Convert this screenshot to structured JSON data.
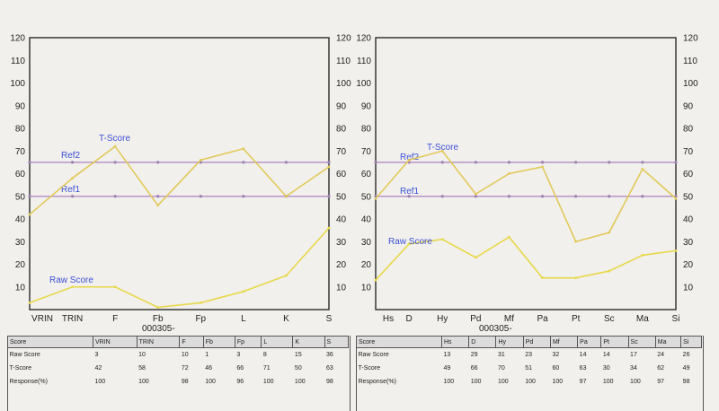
{
  "chart_data": [
    {
      "type": "line",
      "ylim": [
        0,
        120
      ],
      "yticks": [
        10,
        20,
        30,
        40,
        50,
        60,
        70,
        80,
        90,
        100,
        110,
        120
      ],
      "categories": [
        "VRIN",
        "TRIN",
        "F",
        "Fb",
        "Fp",
        "L",
        "K",
        "S"
      ],
      "caption": "000305-",
      "series": [
        {
          "name": "T-Score",
          "values": [
            42,
            58,
            72,
            46,
            66,
            71,
            50,
            63
          ],
          "color": "#e2c95a"
        },
        {
          "name": "Raw Score",
          "values": [
            3,
            10,
            10,
            1,
            3,
            8,
            15,
            36
          ],
          "color": "#e8d84a"
        }
      ],
      "reference_lines": [
        {
          "name": "Ref2",
          "value": 65,
          "color": "#b893c8"
        },
        {
          "name": "Ref1",
          "value": 50,
          "color": "#b893c8"
        }
      ]
    },
    {
      "type": "line",
      "ylim": [
        0,
        120
      ],
      "yticks": [
        10,
        20,
        30,
        40,
        50,
        60,
        70,
        80,
        90,
        100,
        110,
        120
      ],
      "categories": [
        "Hs",
        "D",
        "Hy",
        "Pd",
        "Mf",
        "Pa",
        "Pt",
        "Sc",
        "Ma",
        "Si"
      ],
      "caption": "000305-",
      "series": [
        {
          "name": "T-Score",
          "values": [
            49,
            66,
            70,
            51,
            60,
            63,
            30,
            34,
            62,
            49
          ],
          "color": "#e2c95a"
        },
        {
          "name": "Raw Score",
          "values": [
            13,
            29,
            31,
            23,
            32,
            14,
            14,
            17,
            24,
            26
          ],
          "color": "#e8d84a"
        }
      ],
      "reference_lines": [
        {
          "name": "Ref2",
          "value": 65,
          "color": "#b893c8"
        },
        {
          "name": "Ref1",
          "value": 50,
          "color": "#b893c8"
        }
      ]
    }
  ],
  "tables": {
    "left": {
      "headers": [
        "Score",
        "VRIN",
        "TRIN",
        "F",
        "Fb",
        "Fp",
        "L",
        "K",
        "S"
      ],
      "rows": [
        [
          "Raw Score",
          "3",
          "10",
          "10",
          "1",
          "3",
          "8",
          "15",
          "36"
        ],
        [
          "T-Score",
          "42",
          "58",
          "72",
          "46",
          "66",
          "71",
          "50",
          "63"
        ],
        [
          "Response(%)",
          "100",
          "100",
          "98",
          "100",
          "96",
          "100",
          "100",
          "98"
        ]
      ]
    },
    "right": {
      "headers": [
        "Score",
        "Hs",
        "D",
        "Hy",
        "Pd",
        "Mf",
        "Pa",
        "Pt",
        "Sc",
        "Ma",
        "Si"
      ],
      "rows": [
        [
          "Raw Score",
          "13",
          "29",
          "31",
          "23",
          "32",
          "14",
          "14",
          "17",
          "24",
          "26"
        ],
        [
          "T-Score",
          "49",
          "66",
          "70",
          "51",
          "60",
          "63",
          "30",
          "34",
          "62",
          "49"
        ],
        [
          "Response(%)",
          "100",
          "100",
          "100",
          "100",
          "100",
          "97",
          "100",
          "100",
          "97",
          "98"
        ]
      ]
    }
  }
}
